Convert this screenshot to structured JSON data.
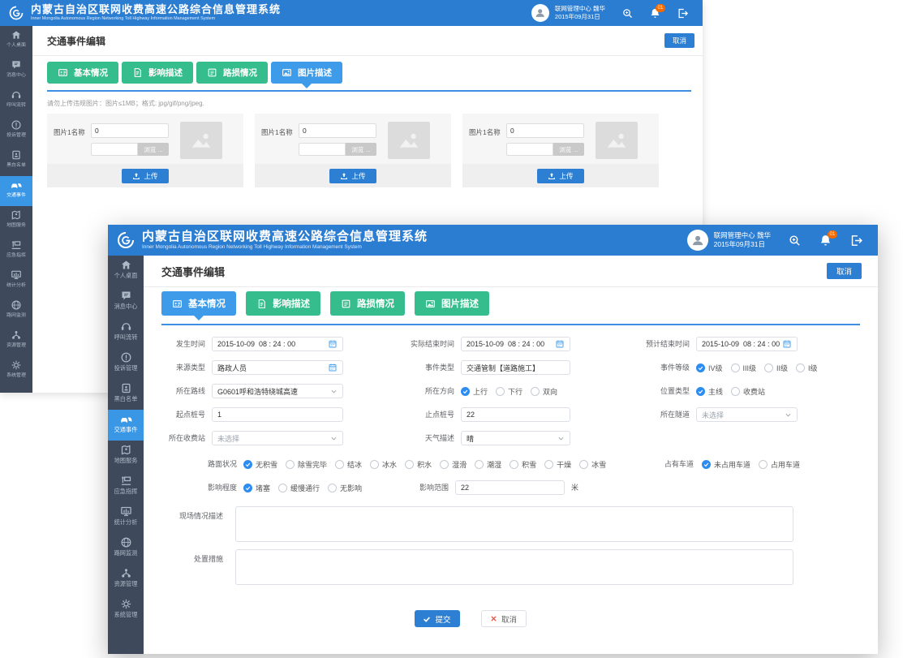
{
  "app": {
    "title": "内蒙古自治区联网收费高速公路综合信息管理系统",
    "subtitle": "Inner Mongolia Autonomous Region Networking Toll Highway Information Management System",
    "user_name": "联网管理中心 魏华",
    "date": "2015年09月31日",
    "bell_badge": "01"
  },
  "colors": {
    "header_blue": "#2b7dd2",
    "sidebar_dark": "#3e4a5c",
    "sidebar_active_blue": "#3a97e6",
    "tab_green": "#35bd8d",
    "tab_active_blue": "#3e9be9",
    "primary_button_blue": "#2d7fd3",
    "radio_checked_blue": "#2d8cf0",
    "badge_orange": "#f56a00"
  },
  "sidebar": {
    "items": [
      {
        "id": "desktop",
        "label": "个人桌面",
        "icon": "home-icon",
        "active": false
      },
      {
        "id": "message",
        "label": "消息中心",
        "icon": "chat-bubble-icon",
        "active": false
      },
      {
        "id": "call",
        "label": "呼叫流转",
        "icon": "headset-icon",
        "active": false
      },
      {
        "id": "complaint",
        "label": "投诉管理",
        "icon": "alert-circle-icon",
        "active": false
      },
      {
        "id": "blacklist",
        "label": "黑白名单",
        "icon": "contacts-icon",
        "active": false
      },
      {
        "id": "traffic-event",
        "label": "交通事件",
        "icon": "car-icon",
        "active": true
      },
      {
        "id": "map",
        "label": "地图服务",
        "icon": "map-pin-icon",
        "active": false
      },
      {
        "id": "emergency",
        "label": "应急指挥",
        "icon": "command-icon",
        "active": false
      },
      {
        "id": "stats",
        "label": "统计分析",
        "icon": "bar-chart-icon",
        "active": false
      },
      {
        "id": "network-monitor",
        "label": "路网监测",
        "icon": "globe-icon",
        "active": false
      },
      {
        "id": "resource",
        "label": "资源管理",
        "icon": "org-tree-icon",
        "active": false
      },
      {
        "id": "system",
        "label": "系统管理",
        "icon": "gear-icon",
        "active": false
      }
    ]
  },
  "back_window": {
    "page_title": "交通事件编辑",
    "cancel_button": "取消",
    "tabs": [
      {
        "id": "basic",
        "label": "基本情况",
        "icon": "id-card-icon",
        "active": false
      },
      {
        "id": "impact",
        "label": "影响描述",
        "icon": "document-icon",
        "active": false
      },
      {
        "id": "damage",
        "label": "路损情况",
        "icon": "note-icon",
        "active": false
      },
      {
        "id": "pictures",
        "label": "图片描述",
        "icon": "picture-icon",
        "active": true
      }
    ],
    "upload_hint": "请勿上传违规图片：图片≤1MB；格式: jpg/gif/png/jpeg.",
    "upload_cards": [
      {
        "name_label": "图片1名称",
        "name_value": "0",
        "file_value": "",
        "browse_label": "浏览 ...",
        "upload_label": "上传"
      },
      {
        "name_label": "图片1名称",
        "name_value": "0",
        "file_value": "",
        "browse_label": "浏览 ...",
        "upload_label": "上传"
      },
      {
        "name_label": "图片1名称",
        "name_value": "0",
        "file_value": "",
        "browse_label": "浏览 ...",
        "upload_label": "上传"
      }
    ]
  },
  "front_window": {
    "page_title": "交通事件编辑",
    "cancel_button": "取消",
    "tabs": [
      {
        "id": "basic",
        "label": "基本情况",
        "icon": "id-card-icon",
        "active": true
      },
      {
        "id": "impact",
        "label": "影响描述",
        "icon": "document-icon",
        "active": false
      },
      {
        "id": "damage",
        "label": "路损情况",
        "icon": "note-icon",
        "active": false
      },
      {
        "id": "pictures",
        "label": "图片描述",
        "icon": "picture-icon",
        "active": false
      }
    ],
    "form": {
      "occur_time": {
        "label": "发生时间",
        "value": "2015-10-09  08 : 24 : 00"
      },
      "actual_end": {
        "label": "实际结束时间",
        "value": "2015-10-09  08 : 24 : 00"
      },
      "expect_end": {
        "label": "预计结束时间",
        "value": "2015-10-09  08 : 24 : 00"
      },
      "source_type": {
        "label": "来源类型",
        "value": "路政人员"
      },
      "event_type": {
        "label": "事件类型",
        "value": "交通管制【道路施工】"
      },
      "event_level": {
        "label": "事件等级",
        "options": [
          "IV级",
          "III级",
          "II级",
          "I级"
        ],
        "selected": "IV级"
      },
      "route": {
        "label": "所在路线",
        "value": "G0601呼和浩特绕城高速"
      },
      "direction": {
        "label": "所在方向",
        "options": [
          "上行",
          "下行",
          "双向"
        ],
        "selected": "上行"
      },
      "location_type": {
        "label": "位置类型",
        "options": [
          "主线",
          "收费站"
        ],
        "selected": "主线"
      },
      "start_stake": {
        "label": "起点桩号",
        "value": "1"
      },
      "end_stake": {
        "label": "止点桩号",
        "value": "22"
      },
      "tunnel": {
        "label": "所在隧道",
        "value": "未选择"
      },
      "toll_station": {
        "label": "所在收费站",
        "value": "未选择"
      },
      "weather": {
        "label": "天气描述",
        "value": "晴"
      },
      "road_surface": {
        "label": "路面状况",
        "options": [
          "无积雪",
          "除雪完毕",
          "结冰",
          "冰水",
          "积水",
          "湿滑",
          "潮湿",
          "积雪",
          "干燥",
          "冰雪"
        ],
        "selected": "无积雪"
      },
      "lane_occupied": {
        "label": "占有车道",
        "options": [
          "未占用车道",
          "占用车道"
        ],
        "selected": "未占用车道"
      },
      "impact_degree": {
        "label": "影响程度",
        "options": [
          "堵塞",
          "缓慢通行",
          "无影响"
        ],
        "selected": "堵塞"
      },
      "impact_range": {
        "label": "影响范围",
        "value": "22",
        "unit": "米"
      },
      "scene_desc_label": "现场情况描述",
      "measures_label": "处置措施",
      "submit_label": "提交",
      "cancel_label": "取消"
    }
  }
}
